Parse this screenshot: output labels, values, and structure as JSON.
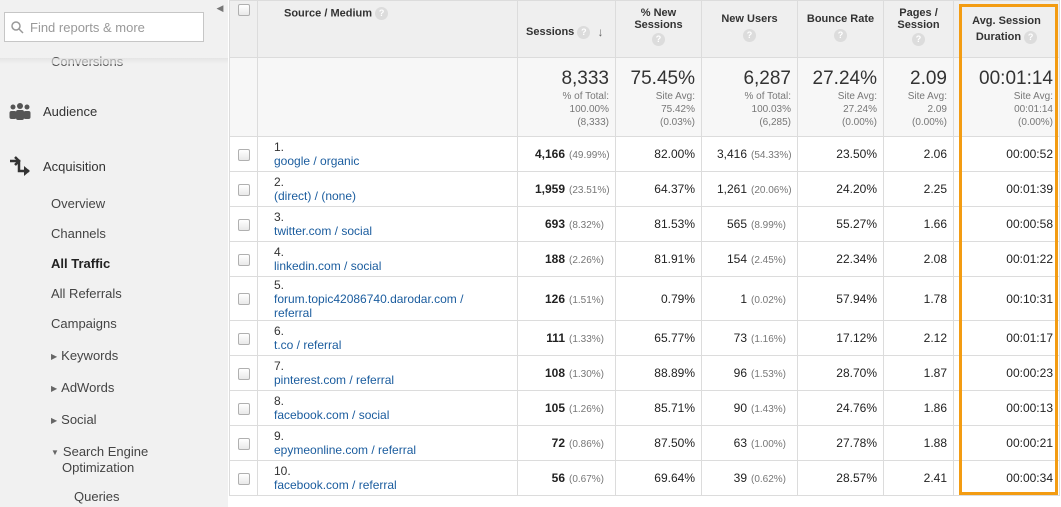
{
  "sidebar": {
    "search_placeholder": "Find reports & more",
    "collapse_icon": "triangle-left-icon",
    "clipped_item": "Conversions",
    "audience": {
      "label": "Audience",
      "icon": "audience-icon"
    },
    "acquisition": {
      "label": "Acquisition",
      "icon": "acquisition-icon"
    },
    "items": [
      {
        "label": "Overview"
      },
      {
        "label": "Channels"
      },
      {
        "label": "All Traffic",
        "active": true
      },
      {
        "label": "All Referrals"
      },
      {
        "label": "Campaigns"
      },
      {
        "label": "Keywords",
        "expandable": true
      },
      {
        "label": "AdWords",
        "expandable": true
      },
      {
        "label": "Social",
        "expandable": true
      },
      {
        "label": "Search Engine Optimization",
        "line1": "Search Engine",
        "line2": "Optimization",
        "expanded": true
      }
    ],
    "sub_items": [
      {
        "label": "Queries"
      }
    ]
  },
  "table": {
    "columns": {
      "source": "Source / Medium",
      "sessions": "Sessions",
      "new_sessions_1": "% New",
      "new_sessions_2": "Sessions",
      "new_users": "New Users",
      "bounce_rate": "Bounce Rate",
      "pages_1": "Pages /",
      "pages_2": "Session",
      "avg_1": "Avg. Session",
      "avg_2": "Duration"
    },
    "totals": {
      "sessions": {
        "value": "8,333",
        "l1": "% of Total:",
        "l2": "100.00%",
        "l3": "(8,333)"
      },
      "new_sessions": {
        "value": "75.45%",
        "l1": "Site Avg:",
        "l2": "75.42%",
        "l3": "(0.03%)"
      },
      "new_users": {
        "value": "6,287",
        "l1": "% of Total:",
        "l2": "100.03%",
        "l3": "(6,285)"
      },
      "bounce_rate": {
        "value": "27.24%",
        "l1": "Site Avg:",
        "l2": "27.24%",
        "l3": "(0.00%)"
      },
      "pages": {
        "value": "2.09",
        "l1": "Site Avg:",
        "l2": "2.09",
        "l3": "(0.00%)"
      },
      "avg": {
        "value": "00:01:14",
        "l1": "Site Avg:",
        "l2": "00:01:14",
        "l3": "(0.00%)"
      }
    },
    "rows": [
      {
        "rank": "1.",
        "source": "google / organic",
        "sessions": "4,166",
        "sessions_pct": "(49.99%)",
        "new_sessions": "82.00%",
        "new_users": "3,416",
        "new_users_pct": "(54.33%)",
        "bounce": "23.50%",
        "pages": "2.06",
        "avg": "00:00:52"
      },
      {
        "rank": "2.",
        "source": "(direct) / (none)",
        "sessions": "1,959",
        "sessions_pct": "(23.51%)",
        "new_sessions": "64.37%",
        "new_users": "1,261",
        "new_users_pct": "(20.06%)",
        "bounce": "24.20%",
        "pages": "2.25",
        "avg": "00:01:39"
      },
      {
        "rank": "3.",
        "source": "twitter.com / social",
        "sessions": "693",
        "sessions_pct": "(8.32%)",
        "new_sessions": "81.53%",
        "new_users": "565",
        "new_users_pct": "(8.99%)",
        "bounce": "55.27%",
        "pages": "1.66",
        "avg": "00:00:58"
      },
      {
        "rank": "4.",
        "source": "linkedin.com / social",
        "sessions": "188",
        "sessions_pct": "(2.26%)",
        "new_sessions": "81.91%",
        "new_users": "154",
        "new_users_pct": "(2.45%)",
        "bounce": "22.34%",
        "pages": "2.08",
        "avg": "00:01:22"
      },
      {
        "rank": "5.",
        "source": "forum.topic42086740.darodar.com / referral",
        "sessions": "126",
        "sessions_pct": "(1.51%)",
        "new_sessions": "0.79%",
        "new_users": "1",
        "new_users_pct": "(0.02%)",
        "bounce": "57.94%",
        "pages": "1.78",
        "avg": "00:10:31"
      },
      {
        "rank": "6.",
        "source": "t.co / referral",
        "sessions": "111",
        "sessions_pct": "(1.33%)",
        "new_sessions": "65.77%",
        "new_users": "73",
        "new_users_pct": "(1.16%)",
        "bounce": "17.12%",
        "pages": "2.12",
        "avg": "00:01:17"
      },
      {
        "rank": "7.",
        "source": "pinterest.com / referral",
        "sessions": "108",
        "sessions_pct": "(1.30%)",
        "new_sessions": "88.89%",
        "new_users": "96",
        "new_users_pct": "(1.53%)",
        "bounce": "28.70%",
        "pages": "1.87",
        "avg": "00:00:23"
      },
      {
        "rank": "8.",
        "source": "facebook.com / social",
        "sessions": "105",
        "sessions_pct": "(1.26%)",
        "new_sessions": "85.71%",
        "new_users": "90",
        "new_users_pct": "(1.43%)",
        "bounce": "24.76%",
        "pages": "1.86",
        "avg": "00:00:13"
      },
      {
        "rank": "9.",
        "source": "epymeonline.com / referral",
        "sessions": "72",
        "sessions_pct": "(0.86%)",
        "new_sessions": "87.50%",
        "new_users": "63",
        "new_users_pct": "(1.00%)",
        "bounce": "27.78%",
        "pages": "1.88",
        "avg": "00:00:21"
      },
      {
        "rank": "10.",
        "source": "facebook.com / referral",
        "sessions": "56",
        "sessions_pct": "(0.67%)",
        "new_sessions": "69.64%",
        "new_users": "39",
        "new_users_pct": "(0.62%)",
        "bounce": "28.57%",
        "pages": "2.41",
        "avg": "00:00:34"
      }
    ]
  },
  "colors": {
    "link": "#1a5c9e",
    "highlight": "#f39c12",
    "sidebar_bg": "#f1f1f1"
  }
}
